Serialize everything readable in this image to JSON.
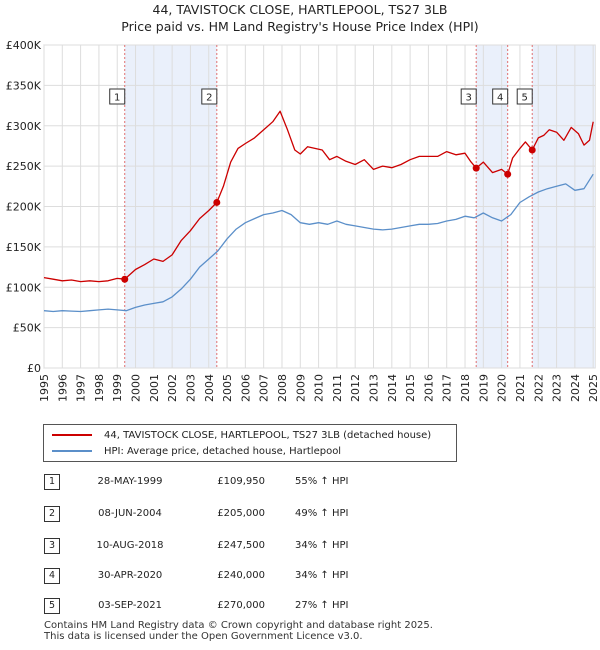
{
  "chart_data": {
    "type": "line",
    "title": "44, TAVISTOCK CLOSE, HARTLEPOOL, TS27 3LB",
    "subtitle": "Price paid vs. HM Land Registry's House Price Index (HPI)",
    "xlabel": "",
    "ylabel": "",
    "xlim": [
      1995,
      2025.1
    ],
    "ylim": [
      0,
      400000
    ],
    "y_ticks": [
      0,
      50000,
      100000,
      150000,
      200000,
      250000,
      300000,
      350000,
      400000
    ],
    "y_tick_labels": [
      "£0",
      "£50K",
      "£100K",
      "£150K",
      "£200K",
      "£250K",
      "£300K",
      "£350K",
      "£400K"
    ],
    "x_tick_labels": [
      "1995",
      "1996",
      "1997",
      "1998",
      "1999",
      "2000",
      "2001",
      "2002",
      "2003",
      "2004",
      "2005",
      "2006",
      "2007",
      "2008",
      "2009",
      "2010",
      "2011",
      "2012",
      "2013",
      "2014",
      "2015",
      "2016",
      "2017",
      "2018",
      "2019",
      "2020",
      "2021",
      "2022",
      "2023",
      "2024",
      "2025"
    ],
    "series": [
      {
        "name": "44, TAVISTOCK CLOSE, HARTLEPOOL, TS27 3LB (detached house)",
        "color": "#cc0000",
        "x": [
          1995.0,
          1995.5,
          1996.0,
          1996.5,
          1997.0,
          1997.5,
          1998.0,
          1998.5,
          1999.0,
          1999.41,
          2000.0,
          2000.5,
          2001.0,
          2001.5,
          2002.0,
          2002.5,
          2003.0,
          2003.5,
          2004.0,
          2004.44,
          2004.8,
          2005.2,
          2005.6,
          2006.0,
          2006.5,
          2007.0,
          2007.5,
          2007.9,
          2008.3,
          2008.7,
          2009.0,
          2009.4,
          2009.8,
          2010.2,
          2010.6,
          2011.0,
          2011.5,
          2012.0,
          2012.5,
          2013.0,
          2013.5,
          2014.0,
          2014.5,
          2015.0,
          2015.5,
          2016.0,
          2016.5,
          2017.0,
          2017.5,
          2018.0,
          2018.3,
          2018.61,
          2019.0,
          2019.5,
          2020.0,
          2020.33,
          2020.6,
          2021.0,
          2021.3,
          2021.67,
          2022.0,
          2022.3,
          2022.6,
          2023.0,
          2023.4,
          2023.8,
          2024.2,
          2024.5,
          2024.8,
          2025.0
        ],
        "y": [
          112000,
          110000,
          108000,
          109000,
          107000,
          108000,
          107000,
          108000,
          111000,
          109950,
          122000,
          128000,
          135000,
          132000,
          140000,
          158000,
          170000,
          185000,
          195000,
          205000,
          225000,
          255000,
          272000,
          278000,
          285000,
          295000,
          305000,
          318000,
          295000,
          270000,
          265000,
          274000,
          272000,
          270000,
          258000,
          262000,
          256000,
          252000,
          258000,
          246000,
          250000,
          248000,
          252000,
          258000,
          262000,
          262000,
          262000,
          268000,
          264000,
          266000,
          256000,
          247500,
          255000,
          242000,
          246000,
          240000,
          260000,
          272000,
          280000,
          270000,
          285000,
          288000,
          295000,
          292000,
          282000,
          298000,
          290000,
          276000,
          282000,
          305000
        ]
      },
      {
        "name": "HPI: Average price, detached house, Hartlepool",
        "color": "#5b8fc9",
        "x": [
          1995.0,
          1995.5,
          1996.0,
          1996.5,
          1997.0,
          1997.5,
          1998.0,
          1998.5,
          1999.0,
          1999.5,
          2000.0,
          2000.5,
          2001.0,
          2001.5,
          2002.0,
          2002.5,
          2003.0,
          2003.5,
          2004.0,
          2004.5,
          2005.0,
          2005.5,
          2006.0,
          2006.5,
          2007.0,
          2007.5,
          2008.0,
          2008.5,
          2009.0,
          2009.5,
          2010.0,
          2010.5,
          2011.0,
          2011.5,
          2012.0,
          2012.5,
          2013.0,
          2013.5,
          2014.0,
          2014.5,
          2015.0,
          2015.5,
          2016.0,
          2016.5,
          2017.0,
          2017.5,
          2018.0,
          2018.5,
          2019.0,
          2019.5,
          2020.0,
          2020.5,
          2021.0,
          2021.5,
          2022.0,
          2022.5,
          2023.0,
          2023.5,
          2024.0,
          2024.5,
          2025.0
        ],
        "y": [
          71000,
          70000,
          71000,
          70500,
          70000,
          71000,
          72000,
          73000,
          72000,
          71000,
          75000,
          78000,
          80000,
          82000,
          88000,
          98000,
          110000,
          125000,
          135000,
          145000,
          160000,
          172000,
          180000,
          185000,
          190000,
          192000,
          195000,
          190000,
          180000,
          178000,
          180000,
          178000,
          182000,
          178000,
          176000,
          174000,
          172000,
          171000,
          172000,
          174000,
          176000,
          178000,
          178000,
          179000,
          182000,
          184000,
          188000,
          186000,
          192000,
          186000,
          182000,
          190000,
          205000,
          212000,
          218000,
          222000,
          225000,
          228000,
          220000,
          222000,
          240000
        ]
      }
    ],
    "annotations": [
      {
        "label": "1",
        "x": 1999.41
      },
      {
        "label": "2",
        "x": 2004.44
      },
      {
        "label": "3",
        "x": 2018.61
      },
      {
        "label": "4",
        "x": 2020.33
      },
      {
        "label": "5",
        "x": 2021.67
      }
    ],
    "shaded_ranges": [
      [
        1999.41,
        2004.44
      ],
      [
        2018.61,
        2020.33
      ],
      [
        2021.67,
        2025.1
      ]
    ],
    "sale_points": [
      {
        "x": 1999.41,
        "y": 109950
      },
      {
        "x": 2004.44,
        "y": 205000
      },
      {
        "x": 2018.61,
        "y": 247500
      },
      {
        "x": 2020.33,
        "y": 240000
      },
      {
        "x": 2021.67,
        "y": 270000
      }
    ],
    "grid": true,
    "legend_position": "below-chart"
  },
  "legend": [
    {
      "label": "44, TAVISTOCK CLOSE, HARTLEPOOL, TS27 3LB (detached house)",
      "color": "#cc0000"
    },
    {
      "label": "HPI: Average price, detached house, Hartlepool",
      "color": "#5b8fc9"
    }
  ],
  "sales": [
    {
      "num": "1",
      "date": "28-MAY-1999",
      "price": "£109,950",
      "hpi": "55% ↑ HPI"
    },
    {
      "num": "2",
      "date": "08-JUN-2004",
      "price": "£205,000",
      "hpi": "49% ↑ HPI"
    },
    {
      "num": "3",
      "date": "10-AUG-2018",
      "price": "£247,500",
      "hpi": "34% ↑ HPI"
    },
    {
      "num": "4",
      "date": "30-APR-2020",
      "price": "£240,000",
      "hpi": "34% ↑ HPI"
    },
    {
      "num": "5",
      "date": "03-SEP-2021",
      "price": "£270,000",
      "hpi": "27% ↑ HPI"
    }
  ],
  "footer": {
    "line1": "Contains HM Land Registry data © Crown copyright and database right 2025.",
    "line2": "This data is licensed under the Open Government Licence v3.0."
  }
}
